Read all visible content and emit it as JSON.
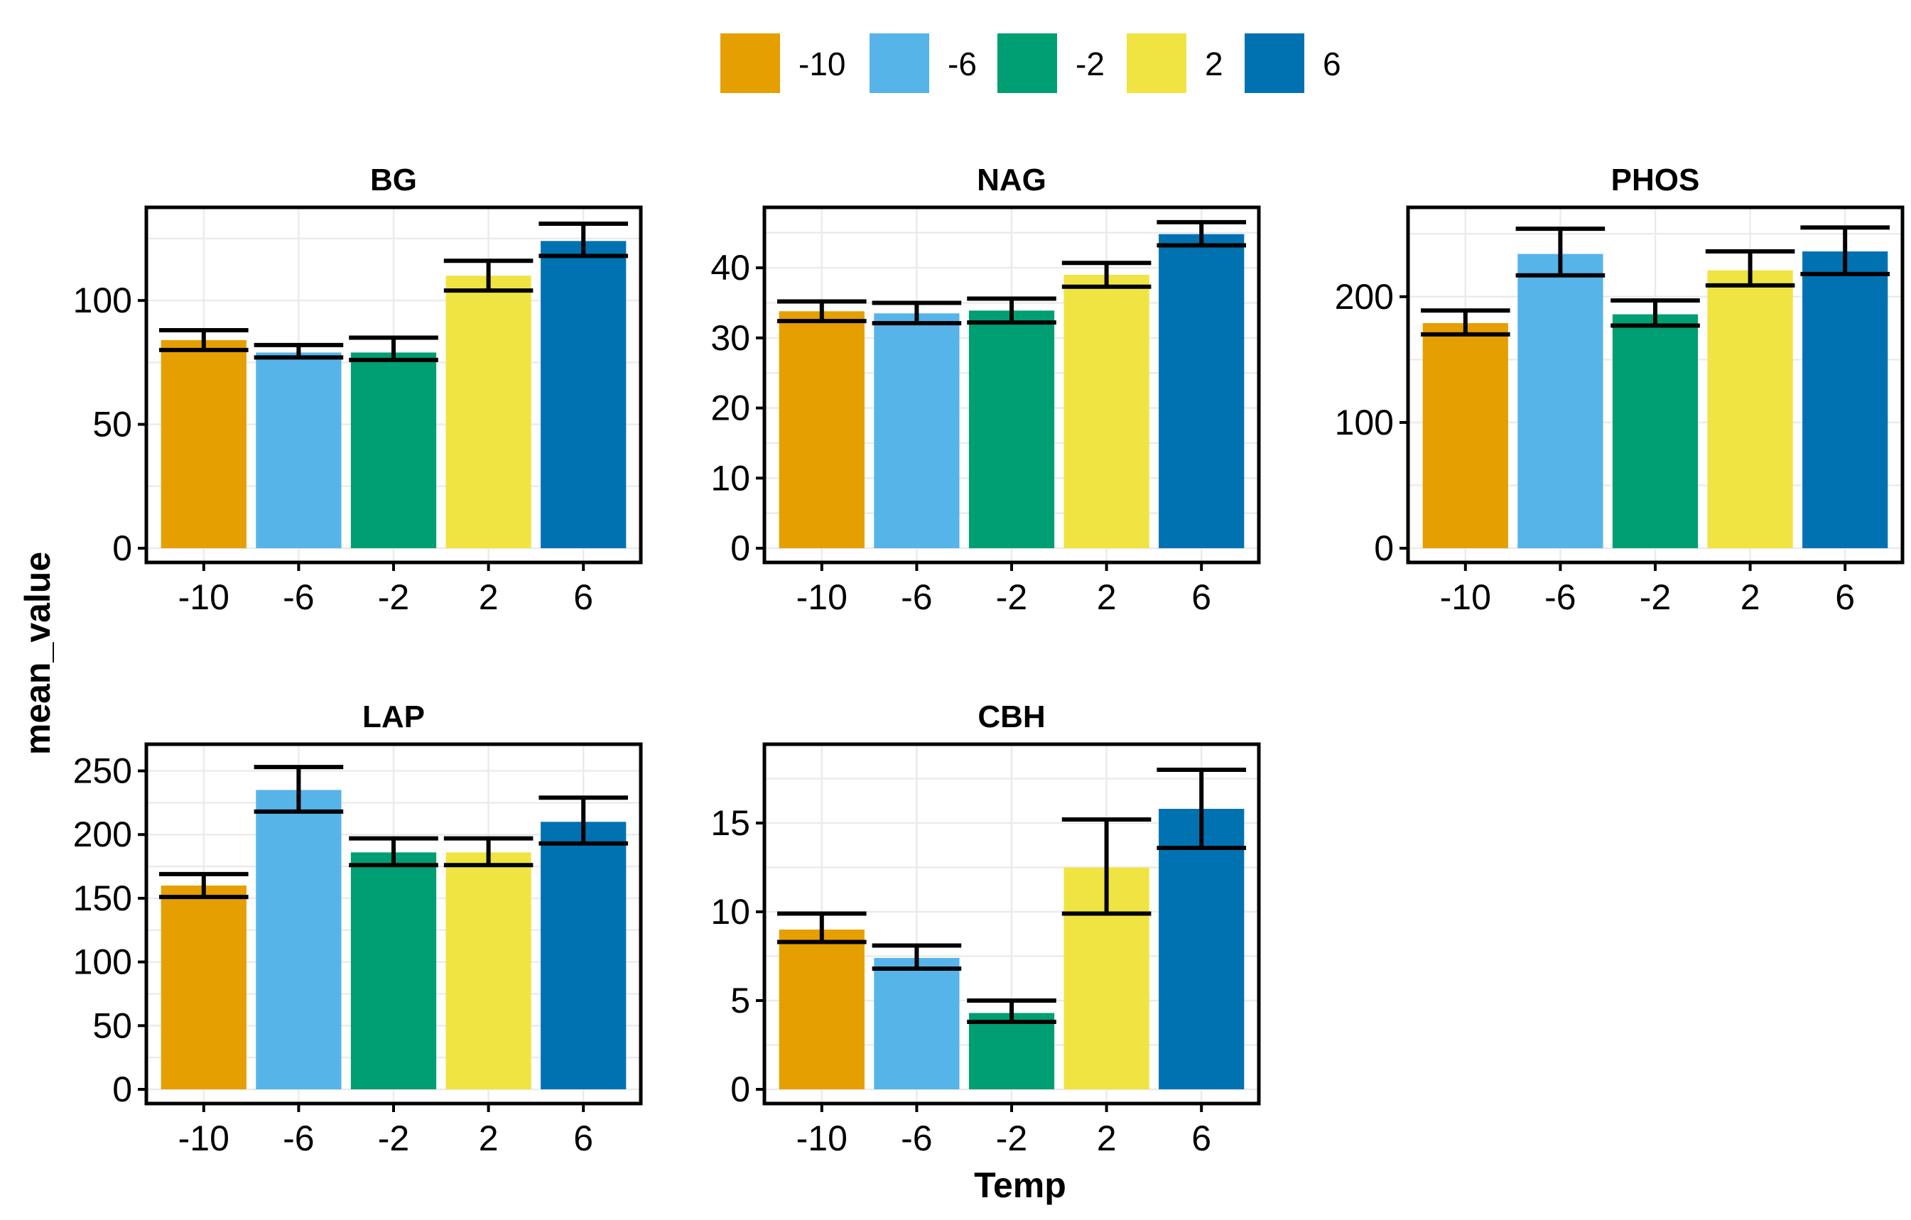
{
  "chart_data": {
    "type": "bar",
    "xlabel": "Temp",
    "ylabel": "mean_value",
    "legend": {
      "position": "top",
      "entries": [
        {
          "label": "-10",
          "color": "#E69F00"
        },
        {
          "label": "-6",
          "color": "#56B4E9"
        },
        {
          "label": "-2",
          "color": "#009E73"
        },
        {
          "label": "2",
          "color": "#F0E442"
        },
        {
          "label": "6",
          "color": "#0072B2"
        }
      ]
    },
    "categories": [
      "-10",
      "-6",
      "-2",
      "2",
      "6"
    ],
    "grid": true,
    "panels": [
      {
        "title": "BG",
        "ylim": [
          0,
          133
        ],
        "yticks": [
          0,
          50,
          100
        ],
        "values": [
          84,
          79,
          79,
          110,
          124
        ],
        "err_low": [
          80,
          77,
          76,
          104,
          118
        ],
        "err_high": [
          88,
          82,
          85,
          116,
          131
        ]
      },
      {
        "title": "NAG",
        "ylim": [
          0,
          47
        ],
        "yticks": [
          0,
          10,
          20,
          30,
          40
        ],
        "values": [
          33.8,
          33.5,
          33.9,
          39.0,
          44.8
        ],
        "err_low": [
          32.4,
          32.1,
          32.2,
          37.3,
          43.2
        ],
        "err_high": [
          35.2,
          35.0,
          35.6,
          40.7,
          46.5
        ]
      },
      {
        "title": "PHOS",
        "ylim": [
          0,
          262
        ],
        "yticks": [
          0,
          100,
          200
        ],
        "values": [
          179,
          234,
          186,
          221,
          236
        ],
        "err_low": [
          170,
          217,
          177,
          209,
          218
        ],
        "err_high": [
          189,
          254,
          197,
          236,
          255
        ]
      },
      {
        "title": "LAP",
        "ylim": [
          0,
          262
        ],
        "yticks": [
          0,
          50,
          100,
          150,
          200,
          250
        ],
        "values": [
          160,
          235,
          186,
          186,
          210
        ],
        "err_low": [
          151,
          218,
          176,
          176,
          193
        ],
        "err_high": [
          169,
          253,
          197,
          197,
          229
        ]
      },
      {
        "title": "CBH",
        "ylim": [
          0,
          18.8
        ],
        "yticks": [
          0,
          5,
          10,
          15
        ],
        "values": [
          9.0,
          7.4,
          4.3,
          12.5,
          15.8
        ],
        "err_low": [
          8.3,
          6.8,
          3.8,
          9.9,
          13.6
        ],
        "err_high": [
          9.9,
          8.1,
          5.0,
          15.2,
          18.0
        ]
      }
    ]
  }
}
